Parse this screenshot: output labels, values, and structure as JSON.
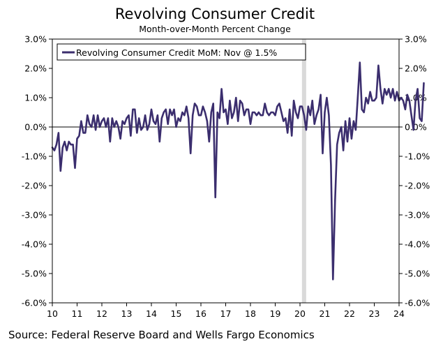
{
  "chart_data": {
    "type": "line",
    "title": "Revolving Consumer Credit",
    "subtitle": "Month-over-Month Percent Change",
    "source": "Source: Federal Reserve Board and Wells Fargo Economics",
    "legend": "Revolving Consumer Credit MoM: Nov @ 1.5%",
    "legend_position": "top-left",
    "ylim": [
      -6,
      3
    ],
    "y_ticks": [
      3,
      2,
      1,
      0,
      -1,
      -2,
      -3,
      -4,
      -5,
      -6
    ],
    "y_tick_labels": [
      "3.0%",
      "2.0%",
      "1.0%",
      "0.0%",
      "-1.0%",
      "-2.0%",
      "-3.0%",
      "-4.0%",
      "-5.0%",
      "-6.0%"
    ],
    "xlim": [
      2010,
      2024
    ],
    "x_ticks": [
      2010,
      2011,
      2012,
      2013,
      2014,
      2015,
      2016,
      2017,
      2018,
      2019,
      2020,
      2021,
      2022,
      2023,
      2024
    ],
    "x_tick_labels": [
      "10",
      "11",
      "12",
      "13",
      "14",
      "15",
      "16",
      "17",
      "18",
      "19",
      "20",
      "21",
      "22",
      "23",
      "24"
    ],
    "recession_band": [
      2020.08,
      2020.25
    ],
    "series": [
      {
        "name": "Revolving Consumer Credit MoM",
        "color": "#3b2e6e",
        "x_start": 2010.0,
        "x_step": 0.08333,
        "values": [
          -0.7,
          -0.8,
          -0.6,
          -0.2,
          -1.5,
          -0.7,
          -0.5,
          -0.8,
          -0.5,
          -0.6,
          -0.6,
          -1.4,
          -0.4,
          -0.3,
          0.2,
          -0.2,
          -0.2,
          0.4,
          0.1,
          0.0,
          0.4,
          -0.1,
          0.4,
          0.0,
          0.2,
          0.3,
          0.0,
          0.3,
          -0.5,
          0.3,
          0.0,
          0.2,
          0.0,
          -0.4,
          0.2,
          0.1,
          0.3,
          0.4,
          -0.3,
          0.6,
          0.6,
          -0.2,
          0.3,
          -0.1,
          0.0,
          0.4,
          -0.1,
          0.1,
          0.6,
          0.2,
          0.1,
          0.4,
          -0.5,
          0.3,
          0.5,
          0.6,
          0.1,
          0.6,
          0.4,
          0.6,
          0.0,
          0.3,
          0.2,
          0.5,
          0.4,
          0.7,
          0.3,
          -0.9,
          0.4,
          0.8,
          0.7,
          0.4,
          0.4,
          0.7,
          0.5,
          0.2,
          -0.5,
          0.5,
          0.8,
          -2.4,
          0.5,
          0.3,
          1.3,
          0.5,
          0.6,
          0.1,
          0.9,
          0.3,
          0.5,
          1.0,
          0.2,
          0.9,
          0.8,
          0.4,
          0.6,
          0.6,
          0.1,
          0.5,
          0.5,
          0.4,
          0.5,
          0.4,
          0.4,
          0.8,
          0.5,
          0.4,
          0.5,
          0.5,
          0.4,
          0.7,
          0.8,
          0.5,
          0.2,
          0.3,
          -0.2,
          0.6,
          -0.3,
          0.9,
          0.5,
          0.3,
          0.7,
          0.7,
          0.4,
          -0.1,
          0.7,
          0.4,
          0.9,
          0.1,
          0.4,
          0.6,
          1.1,
          -0.9,
          0.5,
          1.0,
          0.4,
          -1.3,
          -5.2,
          -2.5,
          -0.6,
          -0.2,
          0.0,
          -0.8,
          0.2,
          -0.5,
          0.3,
          -0.4,
          0.2,
          -0.1,
          1.0,
          2.2,
          0.6,
          0.5,
          1.0,
          0.8,
          1.2,
          0.9,
          0.9,
          1.0,
          2.1,
          1.3,
          0.8,
          1.3,
          1.1,
          1.3,
          1.0,
          1.3,
          0.9,
          1.2,
          0.9,
          1.0,
          0.9,
          0.6,
          1.1,
          0.9,
          0.4,
          -0.1,
          0.9,
          1.3,
          0.3,
          0.2,
          1.5
        ]
      }
    ]
  }
}
